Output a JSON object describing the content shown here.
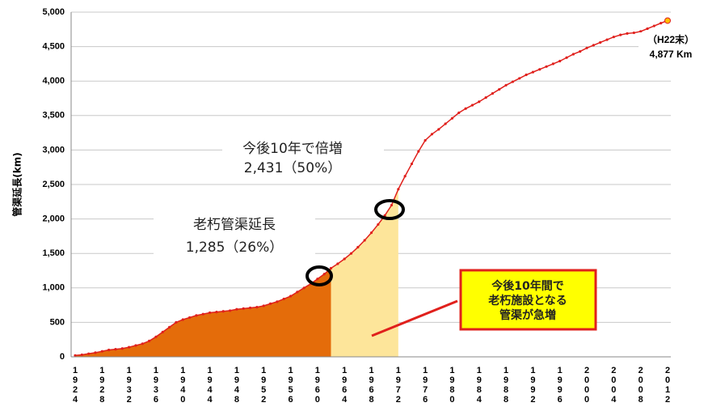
{
  "chart_data": {
    "type": "line",
    "y_label": "管渠延長(km)",
    "x": [
      1924,
      1925,
      1926,
      1927,
      1928,
      1929,
      1930,
      1931,
      1932,
      1933,
      1934,
      1935,
      1936,
      1937,
      1938,
      1939,
      1940,
      1941,
      1942,
      1943,
      1944,
      1945,
      1946,
      1947,
      1948,
      1949,
      1950,
      1951,
      1952,
      1953,
      1954,
      1955,
      1956,
      1957,
      1958,
      1959,
      1960,
      1961,
      1962,
      1963,
      1964,
      1965,
      1966,
      1967,
      1968,
      1969,
      1970,
      1971,
      1972,
      1973,
      1974,
      1975,
      1976,
      1977,
      1978,
      1979,
      1980,
      1981,
      1982,
      1983,
      1984,
      1985,
      1986,
      1987,
      1988,
      1989,
      1990,
      1991,
      1992,
      1993,
      1994,
      1995,
      1996,
      1997,
      1998,
      1999,
      2000,
      2001,
      2002,
      2003,
      2004,
      2005,
      2006,
      2007,
      2008,
      2009,
      2010,
      2011,
      2012
    ],
    "series": [
      {
        "color": "#e0201c",
        "values": [
          20,
          30,
          45,
          60,
          80,
          100,
          110,
          120,
          140,
          165,
          190,
          230,
          290,
          360,
          430,
          500,
          540,
          570,
          600,
          620,
          640,
          650,
          660,
          670,
          690,
          700,
          710,
          720,
          740,
          770,
          800,
          840,
          880,
          940,
          1000,
          1060,
          1130,
          1200,
          1285,
          1350,
          1420,
          1500,
          1590,
          1690,
          1800,
          1920,
          2050,
          2200,
          2431,
          2620,
          2800,
          2980,
          3140,
          3230,
          3300,
          3380,
          3460,
          3540,
          3600,
          3650,
          3700,
          3760,
          3820,
          3880,
          3940,
          3990,
          4040,
          4090,
          4130,
          4170,
          4210,
          4250,
          4290,
          4340,
          4390,
          4430,
          4480,
          4520,
          4560,
          4600,
          4640,
          4670,
          4690,
          4700,
          4720,
          4760,
          4800,
          4840,
          4877
        ]
      }
    ],
    "areas": [
      {
        "from": 1924,
        "to": 1962,
        "color": "#e46c0a"
      },
      {
        "from": 1962,
        "to": 1972,
        "color": "#fde59a"
      }
    ],
    "xlim": [
      1924,
      2012
    ],
    "xticks": [
      1924,
      1928,
      1932,
      1936,
      1940,
      1944,
      1948,
      1952,
      1956,
      1960,
      1964,
      1968,
      1972,
      1976,
      1980,
      1984,
      1988,
      1992,
      1996,
      2000,
      2004,
      2008,
      2012
    ],
    "ylim": [
      0,
      5000
    ],
    "yticks": [
      0,
      500,
      {
        "value": 1000,
        "label": "1,000"
      },
      {
        "value": 1500,
        "label": "1,500"
      },
      {
        "value": 2000,
        "label": "2,000"
      },
      {
        "value": 2500,
        "label": "2,500"
      },
      {
        "value": 3000,
        "label": "3,000"
      },
      {
        "value": 3500,
        "label": "3,500"
      },
      {
        "value": 4000,
        "label": "4,000"
      },
      {
        "value": 4500,
        "label": "4,500"
      },
      {
        "value": 5000,
        "label": "5,000"
      }
    ],
    "grid": true,
    "annotations": {
      "double": "今後10年で倍増",
      "double_value": "2,431（50%）",
      "aging": "老朽管渠延長",
      "aging_value": "1,285（26%）",
      "callout": [
        "今後10年間で",
        "老朽施設となる",
        "管渠が急増"
      ],
      "end_label": "（H22末）",
      "end_value": "4,877 Km"
    }
  }
}
